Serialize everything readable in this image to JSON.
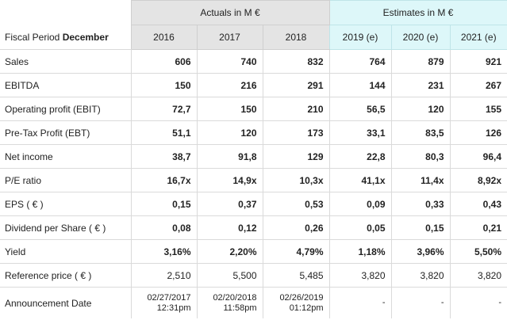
{
  "header": {
    "actuals_label": "Actuals in M €",
    "estimates_label": "Estimates in M €",
    "fiscal_period_prefix": "Fiscal Period",
    "fiscal_period_month": "December",
    "years": [
      "2016",
      "2017",
      "2018",
      "2019 (e)",
      "2020 (e)",
      "2021 (e)"
    ]
  },
  "rows": [
    {
      "label": "Sales",
      "values": [
        "606",
        "740",
        "832",
        "764",
        "879",
        "921"
      ]
    },
    {
      "label": "EBITDA",
      "values": [
        "150",
        "216",
        "291",
        "144",
        "231",
        "267"
      ]
    },
    {
      "label": "Operating profit (EBIT)",
      "values": [
        "72,7",
        "150",
        "210",
        "56,5",
        "120",
        "155"
      ]
    },
    {
      "label": "Pre-Tax Profit (EBT)",
      "values": [
        "51,1",
        "120",
        "173",
        "33,1",
        "83,5",
        "126"
      ]
    },
    {
      "label": "Net income",
      "values": [
        "38,7",
        "91,8",
        "129",
        "22,8",
        "80,3",
        "96,4"
      ]
    },
    {
      "label": "P/E ratio",
      "values": [
        "16,7x",
        "14,9x",
        "10,3x",
        "41,1x",
        "11,4x",
        "8,92x"
      ]
    },
    {
      "label": "EPS ( € )",
      "values": [
        "0,15",
        "0,37",
        "0,53",
        "0,09",
        "0,33",
        "0,43"
      ]
    },
    {
      "label": "Dividend per Share ( € )",
      "values": [
        "0,08",
        "0,12",
        "0,26",
        "0,05",
        "0,15",
        "0,21"
      ]
    },
    {
      "label": "Yield",
      "values": [
        "3,16%",
        "2,20%",
        "4,79%",
        "1,18%",
        "3,96%",
        "5,50%"
      ]
    },
    {
      "label": "Reference price ( € )",
      "values": [
        "2,510",
        "5,500",
        "5,485",
        "3,820",
        "3,820",
        "3,820"
      ]
    }
  ],
  "announcement": {
    "label": "Announcement Date",
    "dates": [
      {
        "date": "02/27/2017",
        "time": "12:31pm"
      },
      {
        "date": "02/20/2018",
        "time": "11:58pm"
      },
      {
        "date": "02/26/2019",
        "time": "01:12pm"
      },
      {
        "date": "-",
        "time": ""
      },
      {
        "date": "-",
        "time": ""
      },
      {
        "date": "-",
        "time": ""
      }
    ]
  }
}
